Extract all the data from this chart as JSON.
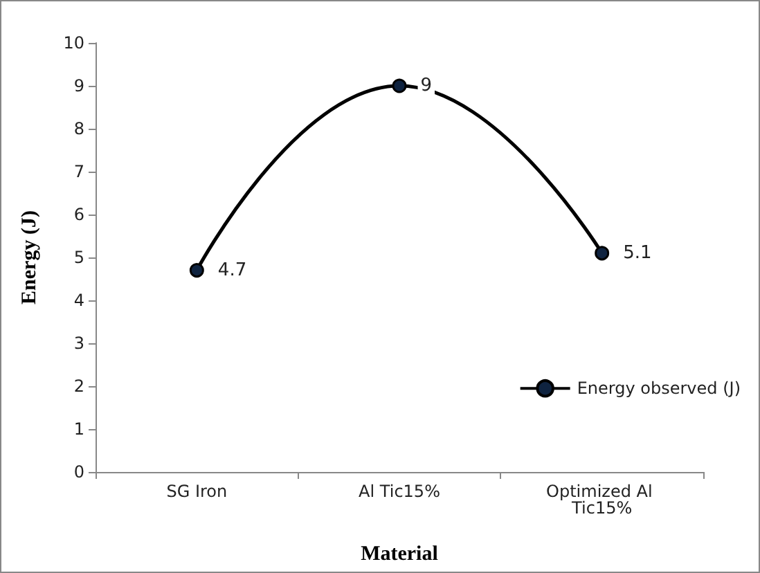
{
  "chart_data": {
    "type": "line",
    "xlabel": "Material",
    "ylabel": "Energy (J)",
    "categories": [
      "SG Iron",
      "Al Tic15%",
      "Optimized Al Tic15%"
    ],
    "series": [
      {
        "name": "Energy observed (J)",
        "color": "#000000",
        "values": [
          4.7,
          9,
          5.1
        ]
      }
    ],
    "ylim": [
      0,
      10
    ],
    "yticks": [
      0,
      1,
      2,
      3,
      4,
      5,
      6,
      7,
      8,
      9,
      10
    ],
    "grid": false,
    "legend": "right",
    "marker": "circle",
    "line_style": "solid",
    "data_labels": true
  }
}
